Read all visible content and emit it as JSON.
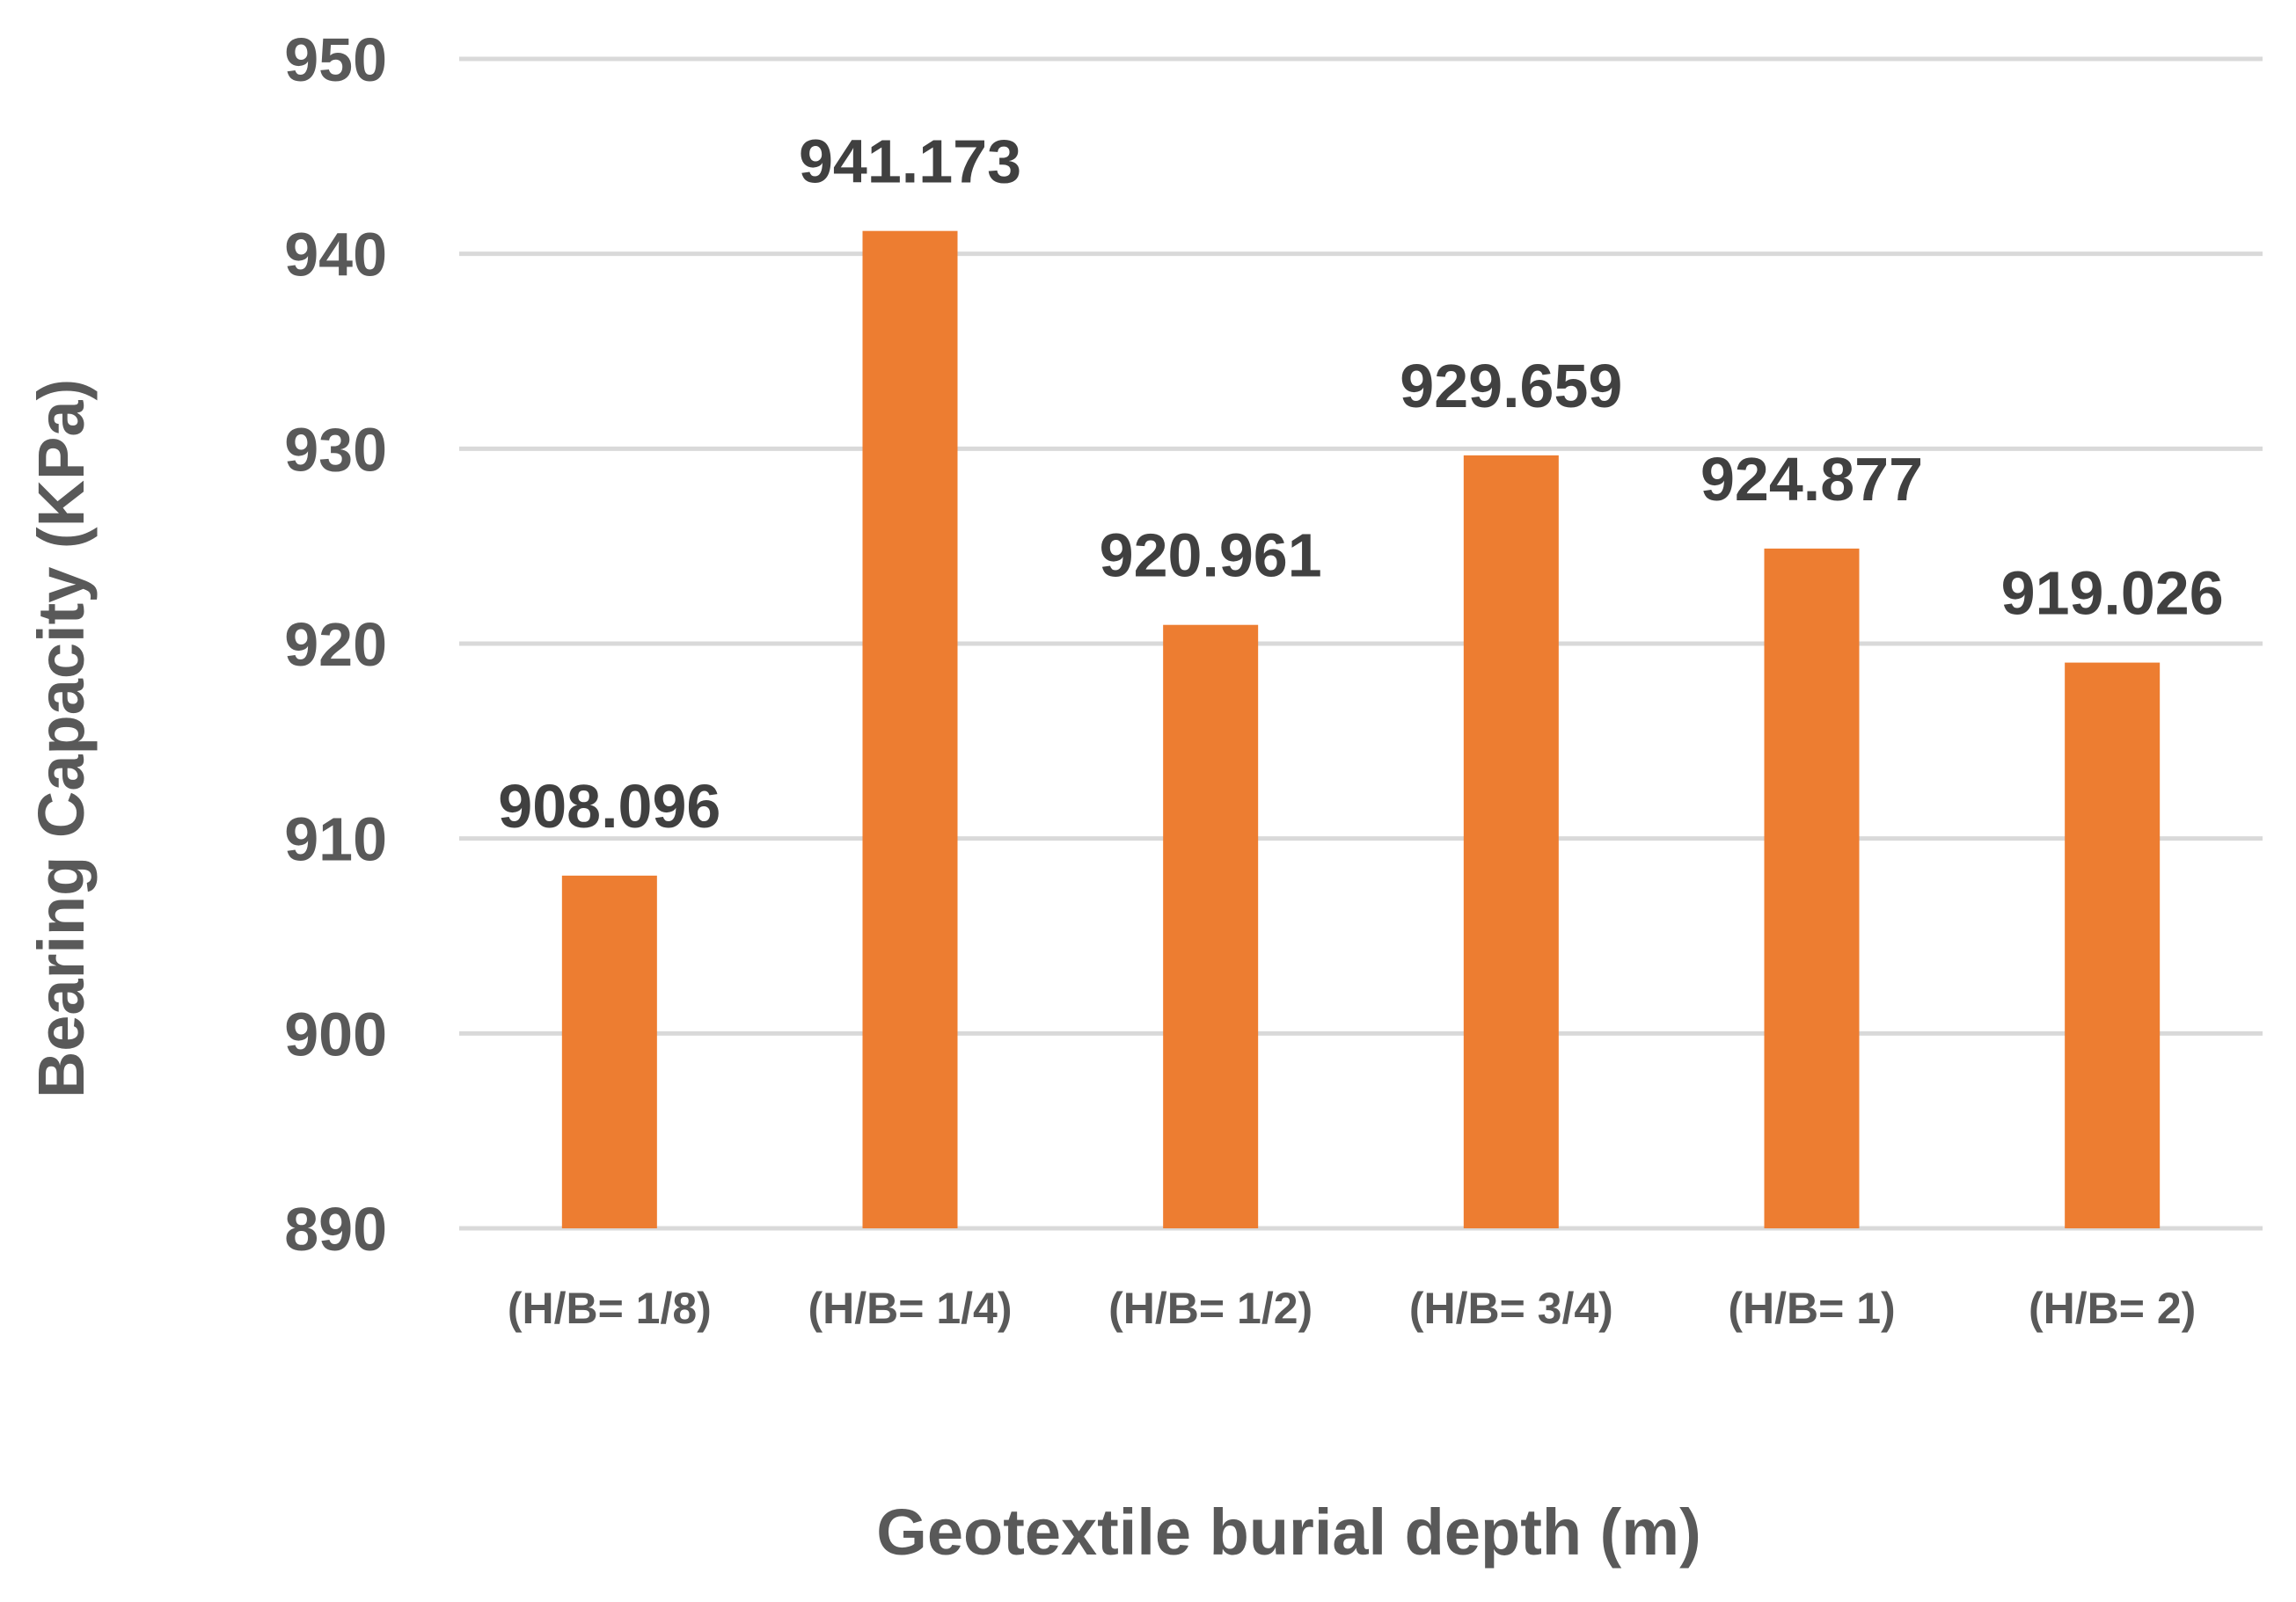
{
  "chart_data": {
    "type": "bar",
    "title": "",
    "xlabel": "Geotextile burial depth (m)",
    "ylabel": "Bearing Capacity (KPa)",
    "categories": [
      "(H/B= 1/8)",
      "(H/B= 1/4)",
      "(H/B= 1/2)",
      "(H/B= 3/4)",
      "(H/B= 1)",
      "(H/B= 2)"
    ],
    "values": [
      908.096,
      941.173,
      920.961,
      929.659,
      924.877,
      919.026
    ],
    "data_labels": [
      "908.096",
      "941.173",
      "920.961",
      "929.659",
      "924.877",
      "919.026"
    ],
    "ylim": [
      890,
      950
    ],
    "yticks": [
      890,
      900,
      910,
      920,
      930,
      940,
      950
    ],
    "grid": true,
    "legend": "none",
    "bar_color": "#ed7d31",
    "grid_color": "#d9d9d9"
  }
}
